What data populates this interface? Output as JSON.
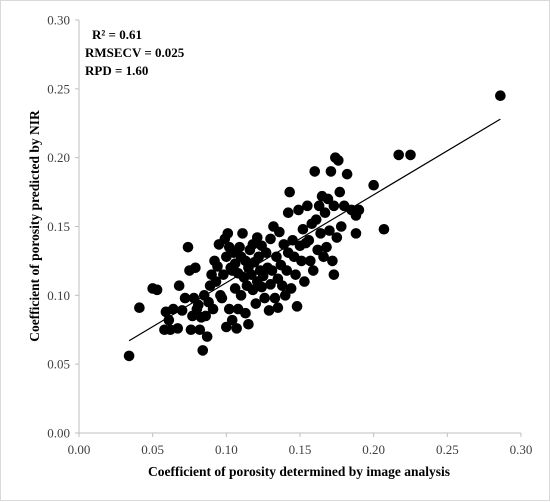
{
  "chart_data": {
    "type": "scatter",
    "title": "",
    "xlabel": "Coefficient of porosity determined by image analysis",
    "ylabel": "Coefficient of porosity predicted by NIR",
    "xlim": [
      0,
      0.3
    ],
    "ylim": [
      0,
      0.3
    ],
    "xticks": [
      "0.00",
      "0.05",
      "0.10",
      "0.15",
      "0.20",
      "0.25",
      "0.30"
    ],
    "yticks": [
      "0.00",
      "0.05",
      "0.10",
      "0.15",
      "0.20",
      "0.25",
      "0.30"
    ],
    "grid": false,
    "legend": "none",
    "annotations": [
      "R² = 0.61",
      "RMSECV = 0.025",
      "RPD = 1.60"
    ],
    "marker_color": "#000000",
    "trendline": {
      "type": "linear",
      "x": [
        0.034,
        0.286
      ],
      "y": [
        0.067,
        0.228
      ]
    },
    "series": [
      {
        "points": [
          [
            0.034,
            0.056
          ],
          [
            0.041,
            0.091
          ],
          [
            0.05,
            0.105
          ],
          [
            0.053,
            0.104
          ],
          [
            0.058,
            0.075
          ],
          [
            0.059,
            0.088
          ],
          [
            0.061,
            0.082
          ],
          [
            0.062,
            0.075
          ],
          [
            0.064,
            0.09
          ],
          [
            0.067,
            0.076
          ],
          [
            0.068,
            0.107
          ],
          [
            0.07,
            0.089
          ],
          [
            0.072,
            0.098
          ],
          [
            0.074,
            0.135
          ],
          [
            0.075,
            0.118
          ],
          [
            0.076,
            0.075
          ],
          [
            0.077,
            0.085
          ],
          [
            0.078,
            0.098
          ],
          [
            0.079,
            0.12
          ],
          [
            0.08,
            0.09
          ],
          [
            0.081,
            0.093
          ],
          [
            0.082,
            0.075
          ],
          [
            0.083,
            0.084
          ],
          [
            0.084,
            0.06
          ],
          [
            0.085,
            0.1
          ],
          [
            0.086,
            0.085
          ],
          [
            0.087,
            0.07
          ],
          [
            0.088,
            0.095
          ],
          [
            0.089,
            0.107
          ],
          [
            0.09,
            0.115
          ],
          [
            0.091,
            0.09
          ],
          [
            0.092,
            0.125
          ],
          [
            0.093,
            0.11
          ],
          [
            0.094,
            0.121
          ],
          [
            0.095,
            0.137
          ],
          [
            0.096,
            0.1
          ],
          [
            0.097,
            0.098
          ],
          [
            0.098,
            0.115
          ],
          [
            0.099,
            0.141
          ],
          [
            0.1,
            0.128
          ],
          [
            0.1,
            0.077
          ],
          [
            0.101,
            0.145
          ],
          [
            0.102,
            0.135
          ],
          [
            0.102,
            0.09
          ],
          [
            0.103,
            0.12
          ],
          [
            0.104,
            0.118
          ],
          [
            0.104,
            0.082
          ],
          [
            0.105,
            0.131
          ],
          [
            0.106,
            0.123
          ],
          [
            0.106,
            0.105
          ],
          [
            0.107,
            0.076
          ],
          [
            0.108,
            0.116
          ],
          [
            0.108,
            0.09
          ],
          [
            0.109,
            0.135
          ],
          [
            0.11,
            0.128
          ],
          [
            0.11,
            0.1
          ],
          [
            0.111,
            0.145
          ],
          [
            0.112,
            0.113
          ],
          [
            0.113,
            0.087
          ],
          [
            0.113,
            0.125
          ],
          [
            0.114,
            0.107
          ],
          [
            0.115,
            0.12
          ],
          [
            0.115,
            0.079
          ],
          [
            0.116,
            0.133
          ],
          [
            0.117,
            0.115
          ],
          [
            0.118,
            0.104
          ],
          [
            0.118,
            0.137
          ],
          [
            0.119,
            0.124
          ],
          [
            0.12,
            0.094
          ],
          [
            0.121,
            0.142
          ],
          [
            0.121,
            0.11
          ],
          [
            0.122,
            0.128
          ],
          [
            0.123,
            0.118
          ],
          [
            0.124,
            0.106
          ],
          [
            0.124,
            0.136
          ],
          [
            0.125,
            0.114
          ],
          [
            0.126,
            0.098
          ],
          [
            0.127,
            0.131
          ],
          [
            0.128,
            0.12
          ],
          [
            0.129,
            0.089
          ],
          [
            0.13,
            0.141
          ],
          [
            0.13,
            0.108
          ],
          [
            0.131,
            0.118
          ],
          [
            0.132,
            0.15
          ],
          [
            0.133,
            0.098
          ],
          [
            0.134,
            0.128
          ],
          [
            0.135,
            0.112
          ],
          [
            0.135,
            0.091
          ],
          [
            0.136,
            0.146
          ],
          [
            0.137,
            0.122
          ],
          [
            0.138,
            0.107
          ],
          [
            0.139,
            0.137
          ],
          [
            0.14,
            0.1
          ],
          [
            0.141,
            0.118
          ],
          [
            0.142,
            0.131
          ],
          [
            0.142,
            0.16
          ],
          [
            0.143,
            0.175
          ],
          [
            0.144,
            0.105
          ],
          [
            0.145,
            0.14
          ],
          [
            0.146,
            0.128
          ],
          [
            0.147,
            0.115
          ],
          [
            0.148,
            0.092
          ],
          [
            0.149,
            0.162
          ],
          [
            0.15,
            0.136
          ],
          [
            0.151,
            0.125
          ],
          [
            0.152,
            0.148
          ],
          [
            0.153,
            0.11
          ],
          [
            0.154,
            0.138
          ],
          [
            0.155,
            0.165
          ],
          [
            0.156,
            0.14
          ],
          [
            0.157,
            0.125
          ],
          [
            0.158,
            0.152
          ],
          [
            0.159,
            0.118
          ],
          [
            0.16,
            0.19
          ],
          [
            0.161,
            0.155
          ],
          [
            0.162,
            0.133
          ],
          [
            0.163,
            0.165
          ],
          [
            0.164,
            0.145
          ],
          [
            0.165,
            0.172
          ],
          [
            0.166,
            0.128
          ],
          [
            0.167,
            0.16
          ],
          [
            0.168,
            0.135
          ],
          [
            0.169,
            0.17
          ],
          [
            0.17,
            0.147
          ],
          [
            0.171,
            0.19
          ],
          [
            0.172,
            0.125
          ],
          [
            0.173,
            0.165
          ],
          [
            0.173,
            0.115
          ],
          [
            0.174,
            0.2
          ],
          [
            0.175,
            0.142
          ],
          [
            0.176,
            0.198
          ],
          [
            0.177,
            0.175
          ],
          [
            0.178,
            0.15
          ],
          [
            0.18,
            0.165
          ],
          [
            0.182,
            0.188
          ],
          [
            0.185,
            0.162
          ],
          [
            0.188,
            0.158
          ],
          [
            0.188,
            0.145
          ],
          [
            0.19,
            0.162
          ],
          [
            0.2,
            0.18
          ],
          [
            0.207,
            0.148
          ],
          [
            0.217,
            0.202
          ],
          [
            0.225,
            0.202
          ],
          [
            0.286,
            0.245
          ]
        ]
      }
    ]
  }
}
